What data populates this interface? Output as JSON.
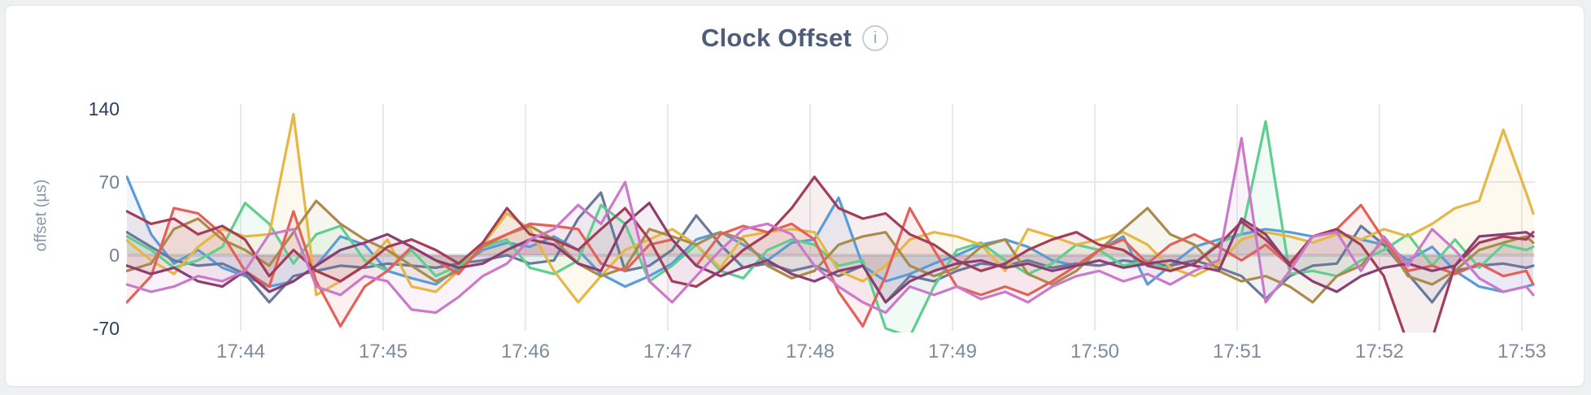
{
  "header": {
    "title": "Clock Offset",
    "info_icon_glyph": "i"
  },
  "colors": {
    "page_background": "#eef0f2",
    "card_background": "#ffffff",
    "card_border": "#e3e6e9",
    "title_text": "#4e5e78",
    "tick_text": "#7d8b9d",
    "tick_text_emphasis": "#2e3f5c",
    "grid_line": "#e8e9ec",
    "zero_line": "#dfe1e5",
    "axis_label_text": "#8a97a8"
  },
  "chart_data": {
    "type": "line",
    "title": "Clock Offset",
    "xlabel": "",
    "ylabel": "offset (µs)",
    "ylim": [
      -70,
      140
    ],
    "grid": "on",
    "legend": "none",
    "area_fill_to_zero": true,
    "area_fill_opacity": 0.09,
    "yticks": [
      {
        "value": 140,
        "label": "140",
        "emphasis": true
      },
      {
        "value": 70,
        "label": "70",
        "emphasis": false
      },
      {
        "value": 0,
        "label": "0",
        "emphasis": false
      },
      {
        "value": -70,
        "label": "-70",
        "emphasis": true
      }
    ],
    "xtick_labels": [
      "17:44",
      "17:45",
      "17:46",
      "17:47",
      "17:48",
      "17:49",
      "17:50",
      "17:51",
      "17:52",
      "17:53"
    ],
    "x_minutes_after_17_43": [
      0.2,
      0.37,
      0.53,
      0.7,
      0.87,
      1.03,
      1.2,
      1.37,
      1.53,
      1.7,
      1.87,
      2.03,
      2.2,
      2.37,
      2.53,
      2.7,
      2.87,
      3.03,
      3.2,
      3.37,
      3.53,
      3.7,
      3.87,
      4.03,
      4.2,
      4.37,
      4.53,
      4.7,
      4.87,
      5.03,
      5.2,
      5.37,
      5.53,
      5.7,
      5.87,
      6.03,
      6.2,
      6.37,
      6.53,
      6.7,
      6.87,
      7.03,
      7.2,
      7.37,
      7.53,
      7.7,
      7.87,
      8.03,
      8.2,
      8.37,
      8.53,
      8.7,
      8.87,
      9.03,
      9.2,
      9.37,
      9.53,
      9.7,
      9.87,
      10.03,
      10.08
    ],
    "series": [
      {
        "name": "blue",
        "color": "#5B9BD8",
        "values": [
          75,
          20,
          -8,
          5,
          -12,
          -20,
          -30,
          -25,
          -10,
          18,
          10,
          -15,
          -22,
          -28,
          -12,
          5,
          12,
          8,
          18,
          5,
          -18,
          -30,
          -20,
          -8,
          15,
          22,
          10,
          -5,
          12,
          15,
          55,
          -10,
          -25,
          -18,
          -8,
          0,
          10,
          15,
          8,
          -5,
          -10,
          5,
          18,
          -28,
          -10,
          8,
          15,
          20,
          25,
          22,
          18,
          22,
          15,
          10,
          -5,
          8,
          -15,
          -30,
          -35,
          -30,
          -28
        ]
      },
      {
        "name": "slate",
        "color": "#6B7999",
        "values": [
          22,
          8,
          -5,
          -10,
          -8,
          -18,
          -45,
          -20,
          -15,
          -10,
          -12,
          -8,
          -10,
          -12,
          -8,
          -5,
          0,
          -8,
          -5,
          35,
          60,
          -15,
          -10,
          5,
          38,
          10,
          -12,
          -8,
          -15,
          -10,
          -20,
          -10,
          -45,
          -20,
          -25,
          -15,
          -8,
          -10,
          -5,
          -12,
          -8,
          -10,
          -5,
          -8,
          -10,
          -5,
          -12,
          -20,
          -42,
          -20,
          -10,
          -8,
          28,
          10,
          -18,
          -45,
          -15,
          -10,
          -8,
          -12,
          -10
        ]
      },
      {
        "name": "green",
        "color": "#5FCE8E",
        "values": [
          18,
          5,
          -12,
          -5,
          8,
          50,
          30,
          -8,
          20,
          28,
          -5,
          -15,
          5,
          -20,
          -10,
          8,
          15,
          -12,
          -18,
          -5,
          48,
          30,
          -25,
          -10,
          10,
          -15,
          -22,
          5,
          15,
          10,
          -10,
          -5,
          -70,
          -78,
          -30,
          5,
          12,
          -5,
          -18,
          -8,
          10,
          5,
          -10,
          -5,
          -15,
          -8,
          12,
          20,
          128,
          -18,
          -15,
          -20,
          -5,
          5,
          20,
          -10,
          15,
          -12,
          10,
          5,
          8
        ]
      },
      {
        "name": "gold",
        "color": "#E6B747",
        "values": [
          14,
          -5,
          -18,
          8,
          25,
          18,
          20,
          135,
          -38,
          -25,
          -10,
          15,
          -30,
          -35,
          -15,
          10,
          40,
          25,
          -15,
          -45,
          -20,
          5,
          15,
          25,
          10,
          -12,
          18,
          22,
          25,
          22,
          -15,
          -25,
          -10,
          15,
          22,
          18,
          10,
          -15,
          25,
          18,
          10,
          15,
          22,
          10,
          -12,
          -20,
          -8,
          15,
          22,
          18,
          12,
          20,
          15,
          25,
          18,
          30,
          45,
          52,
          120,
          60,
          40
        ]
      },
      {
        "name": "khaki",
        "color": "#AB8B4D",
        "values": [
          -15,
          -8,
          25,
          35,
          15,
          5,
          -10,
          22,
          52,
          30,
          15,
          5,
          -10,
          -25,
          -15,
          8,
          20,
          28,
          15,
          -8,
          -20,
          -12,
          25,
          18,
          10,
          22,
          15,
          -10,
          -22,
          -15,
          10,
          18,
          22,
          -10,
          -20,
          -12,
          8,
          15,
          -18,
          -28,
          -15,
          5,
          25,
          45,
          20,
          10,
          -15,
          -25,
          -20,
          -30,
          -45,
          -20,
          -10,
          15,
          -20,
          -28,
          -15,
          5,
          12,
          18,
          12
        ]
      },
      {
        "name": "salmon",
        "color": "#E2625A",
        "values": [
          -45,
          -20,
          45,
          40,
          20,
          -15,
          -30,
          42,
          -25,
          -68,
          -30,
          -15,
          8,
          -5,
          -18,
          10,
          20,
          30,
          28,
          25,
          -8,
          -15,
          10,
          15,
          -10,
          20,
          28,
          22,
          30,
          15,
          -35,
          -68,
          -20,
          45,
          5,
          -30,
          -38,
          -30,
          -38,
          -25,
          -10,
          5,
          15,
          -8,
          10,
          20,
          8,
          -5,
          10,
          -10,
          18,
          25,
          48,
          15,
          -15,
          -10,
          -18,
          -8,
          -20,
          -15,
          -28
        ]
      },
      {
        "name": "maroon",
        "color": "#A43E58",
        "values": [
          42,
          30,
          35,
          20,
          28,
          15,
          -20,
          5,
          -15,
          -25,
          -10,
          8,
          15,
          5,
          -8,
          12,
          45,
          20,
          15,
          5,
          25,
          45,
          15,
          -25,
          -30,
          -15,
          5,
          20,
          45,
          75,
          45,
          35,
          40,
          20,
          10,
          -5,
          -15,
          -8,
          5,
          15,
          22,
          10,
          5,
          -10,
          -15,
          -8,
          10,
          32,
          15,
          -8,
          18,
          25,
          10,
          -20,
          -85,
          -80,
          -10,
          12,
          18,
          15,
          22
        ]
      },
      {
        "name": "plum",
        "color": "#8B3E73",
        "values": [
          -10,
          -18,
          -12,
          -25,
          -30,
          -15,
          -35,
          -25,
          -10,
          5,
          12,
          20,
          8,
          -5,
          -12,
          -8,
          5,
          15,
          10,
          -8,
          -15,
          30,
          50,
          15,
          -10,
          -20,
          -12,
          -5,
          -18,
          -25,
          -15,
          -10,
          -45,
          -25,
          -15,
          -8,
          -5,
          -12,
          -8,
          -15,
          -10,
          -5,
          -12,
          -8,
          -5,
          -10,
          -15,
          35,
          20,
          -10,
          -25,
          -35,
          -20,
          -12,
          -8,
          -15,
          -10,
          18,
          20,
          22,
          18
        ]
      },
      {
        "name": "orchid",
        "color": "#CB7AC9",
        "values": [
          -28,
          -35,
          -30,
          -20,
          -25,
          -15,
          20,
          25,
          -30,
          -38,
          -20,
          -25,
          -52,
          -55,
          -40,
          -20,
          -8,
          15,
          25,
          48,
          30,
          70,
          -25,
          -45,
          -20,
          5,
          25,
          30,
          20,
          -10,
          -30,
          -45,
          -55,
          -30,
          -38,
          -30,
          -42,
          -35,
          -45,
          -30,
          -20,
          -15,
          -25,
          -18,
          -28,
          -15,
          -5,
          112,
          -45,
          -15,
          18,
          22,
          -15,
          18,
          -10,
          25,
          5,
          -22,
          -35,
          -30,
          -38
        ]
      }
    ]
  }
}
